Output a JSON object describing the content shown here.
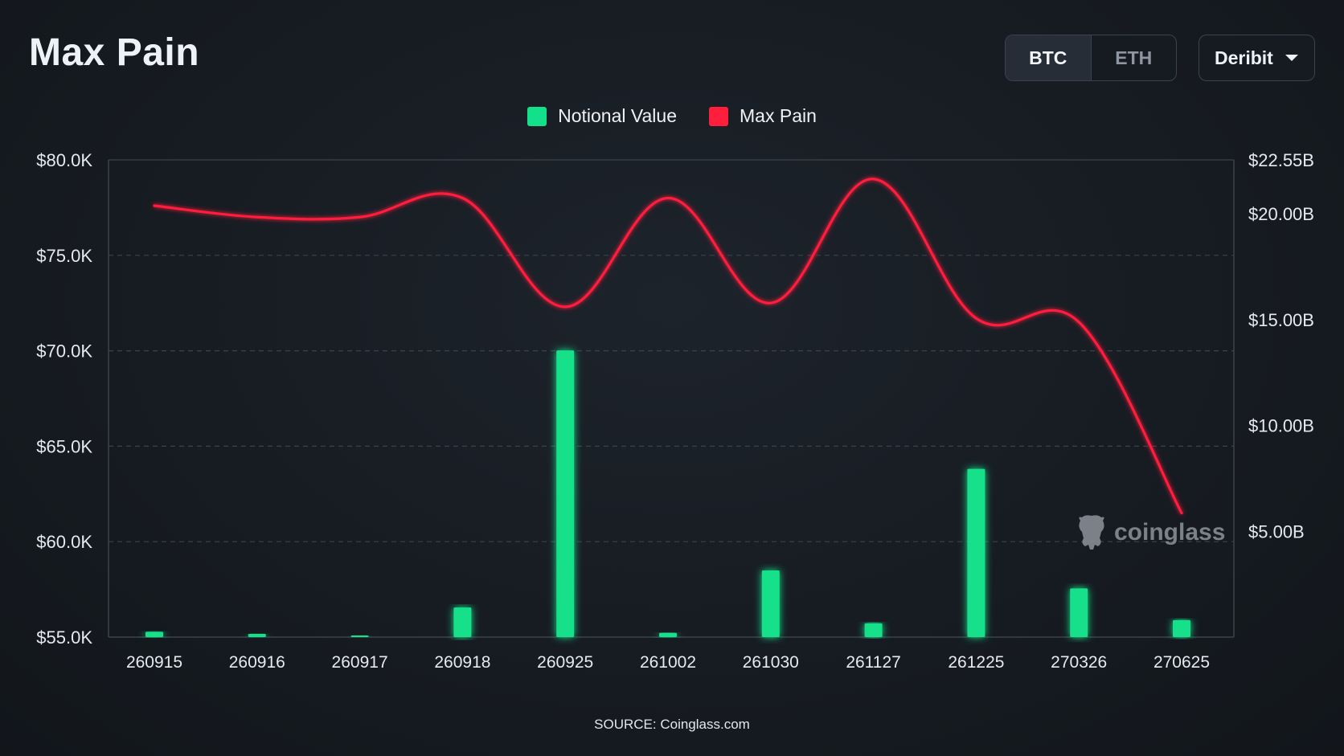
{
  "header": {
    "title": "Max Pain",
    "tabs": [
      {
        "label": "BTC",
        "active": true
      },
      {
        "label": "ETH",
        "active": false
      }
    ],
    "exchange_select": {
      "value": "Deribit"
    }
  },
  "watermark": {
    "text": "coinglass",
    "icon": "bull-mascot-icon"
  },
  "source": "SOURCE: Coinglass.com",
  "colors": {
    "notional": "#12e08a",
    "max_pain": "#ff1f3d",
    "grid": "#3b424b",
    "text": "#e6e9ee"
  },
  "chart_data": {
    "type": "bar",
    "categories": [
      "260915",
      "260916",
      "260917",
      "260918",
      "260925",
      "261002",
      "261030",
      "261127",
      "261225",
      "270326",
      "270625"
    ],
    "series": [
      {
        "name": "Notional Value",
        "type": "bar",
        "axis": "right",
        "values": [
          0.25,
          0.15,
          0.05,
          1.4,
          13.55,
          0.2,
          3.15,
          0.65,
          7.95,
          2.3,
          0.8
        ]
      },
      {
        "name": "Max Pain",
        "type": "line",
        "axis": "left",
        "values": [
          77600,
          77000,
          77000,
          78000,
          72300,
          78000,
          72500,
          79000,
          71700,
          71500,
          61500
        ]
      }
    ],
    "y_left": {
      "ticks": [
        55000,
        60000,
        65000,
        70000,
        75000,
        80000
      ],
      "tick_labels": [
        "$55.0K",
        "$60.0K",
        "$65.0K",
        "$70.0K",
        "$75.0K",
        "$80.0K"
      ],
      "range": [
        55000,
        80000
      ]
    },
    "y_right": {
      "ticks": [
        5,
        10,
        15,
        20,
        22.55
      ],
      "tick_labels": [
        "$5.00B",
        "$10.00B",
        "$15.00B",
        "$20.00B",
        "$22.55B"
      ],
      "range": [
        0,
        22.55
      ]
    },
    "grid": true,
    "legend_position": "top-center"
  }
}
